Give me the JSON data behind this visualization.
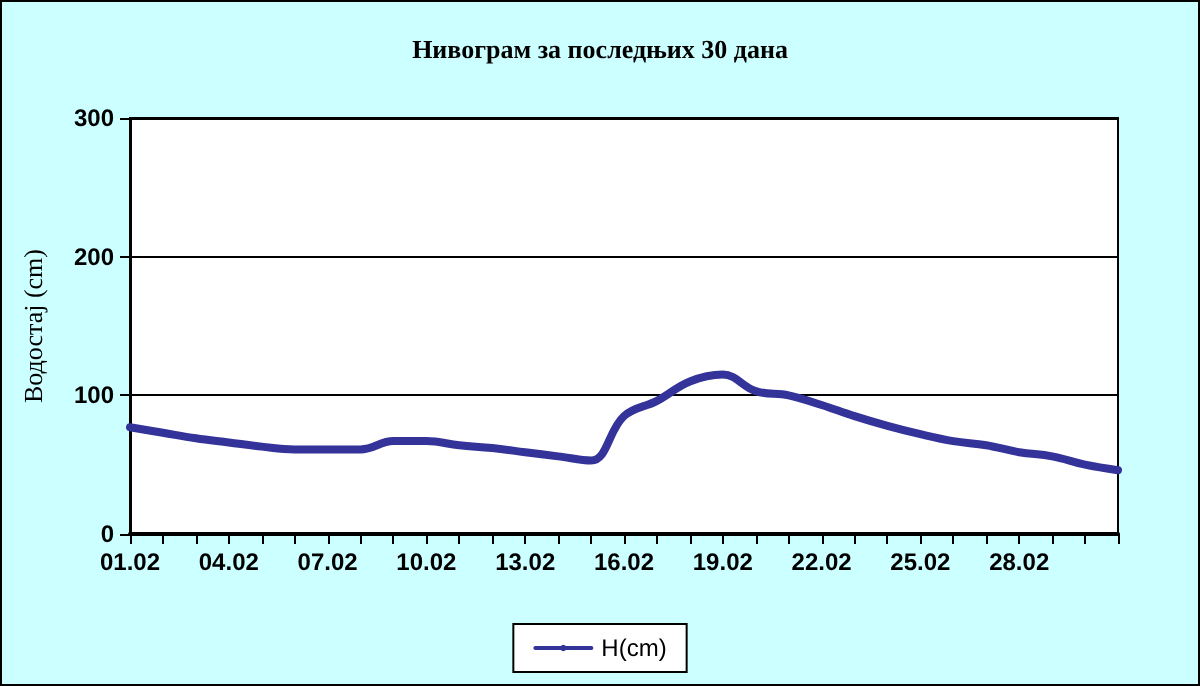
{
  "chart_data": {
    "type": "line",
    "title": "Нивограм за последњих 30 дана",
    "ylabel": "Водостај (cm)",
    "categories": [
      "01.02",
      null,
      null,
      "04.02",
      null,
      null,
      "07.02",
      null,
      null,
      "10.02",
      null,
      null,
      "13.02",
      null,
      null,
      "16.02",
      null,
      null,
      "19.02",
      null,
      null,
      "22.02",
      null,
      null,
      "25.02",
      null,
      null,
      "28.02",
      null,
      null,
      null
    ],
    "series": [
      {
        "name": "H(cm)",
        "color": "#333399",
        "values": [
          77,
          73,
          69,
          66,
          63,
          61,
          61,
          61,
          67,
          67,
          64,
          62,
          59,
          56,
          53,
          85,
          96,
          110,
          115,
          103,
          100,
          93,
          85,
          78,
          72,
          67,
          64,
          59,
          56,
          50,
          46
        ]
      }
    ],
    "ylim": [
      0,
      300
    ],
    "yticks": [
      0,
      100,
      200,
      300
    ],
    "grid": "y",
    "legend": "bottom",
    "marker": "none",
    "line_style": "solid"
  }
}
